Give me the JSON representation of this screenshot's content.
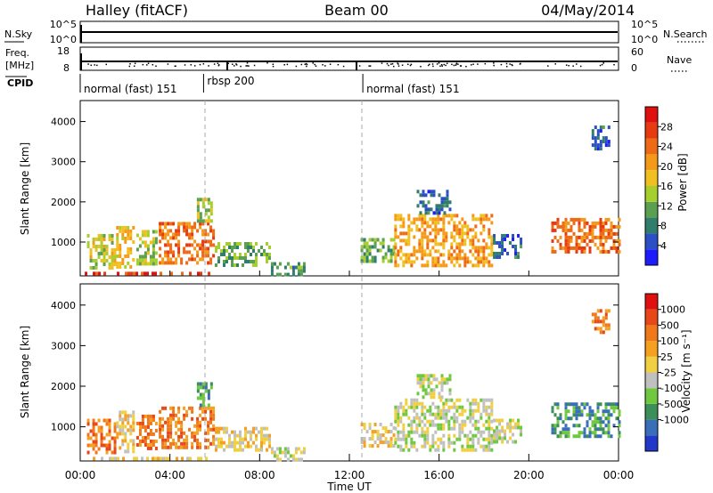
{
  "header": {
    "station": "Halley (fitACF)",
    "beam": "Beam 00",
    "date": "04/May/2014"
  },
  "top_panels": {
    "nsky_label": "N.Sky",
    "nsearch_label": "N.Search",
    "freq_label_1": "Freq.",
    "freq_label_2": "[MHz]",
    "nave_label": "Nave",
    "cpid_label": "CPID",
    "nsky_ticks": [
      "10^5",
      "10^0"
    ],
    "nsky_right_ticks": [
      "10^5",
      "10^0"
    ],
    "freq_ticks": [
      "18",
      "8"
    ],
    "nave_ticks": [
      "60",
      "0"
    ]
  },
  "cpid": [
    {
      "label": "normal (fast) 151",
      "start_h": 0.0
    },
    {
      "label": "rbsp 200",
      "start_h": 5.5
    },
    {
      "label": "normal (fast) 151",
      "start_h": 12.6
    }
  ],
  "time_axis": {
    "label": "Time UT",
    "ticks": [
      "00:00",
      "04:00",
      "08:00",
      "12:00",
      "16:00",
      "20:00",
      "00:00"
    ]
  },
  "range_axis": {
    "label": "Slant Range [km]",
    "ticks": [
      "1000",
      "2000",
      "3000",
      "4000"
    ]
  },
  "power_colorbar": {
    "label": "Power [dB]",
    "ticks": [
      "4",
      "8",
      "12",
      "16",
      "20",
      "24",
      "28"
    ],
    "colors": [
      "#1c1cff",
      "#2b4fc4",
      "#2f7d6b",
      "#5aa050",
      "#a6cf2e",
      "#f0c020",
      "#f59a18",
      "#ee6a14",
      "#e83a10",
      "#e01010"
    ]
  },
  "velocity_colorbar": {
    "label": "Velocity [m s⁻¹]",
    "ticks": [
      "1000",
      "500",
      "100",
      "25",
      "-25",
      "-100",
      "-500",
      "-1000"
    ],
    "colors": [
      "#2238c8",
      "#3a6eb8",
      "#3c8f58",
      "#70c840",
      "#c0c0c0",
      "#f0d040",
      "#f5a020",
      "#f07818",
      "#e84818",
      "#e01010"
    ]
  },
  "chart_data": [
    {
      "type": "heatmap",
      "title": "Power [dB]",
      "xlabel": "Time UT",
      "ylabel": "Slant Range [km]",
      "xlim": [
        0,
        24
      ],
      "ylim": [
        180,
        4500
      ],
      "clim": [
        0,
        32
      ],
      "patches": [
        {
          "t0": 0.2,
          "t1": 5.8,
          "r0": 200,
          "r1": 260,
          "v": 28
        },
        {
          "t0": 0.3,
          "t1": 1.5,
          "r0": 400,
          "r1": 1200,
          "v": 16
        },
        {
          "t0": 1.6,
          "t1": 2.4,
          "r0": 400,
          "r1": 1400,
          "v": 18
        },
        {
          "t0": 2.5,
          "t1": 3.4,
          "r0": 450,
          "r1": 1300,
          "v": 14
        },
        {
          "t0": 3.5,
          "t1": 5.9,
          "r0": 450,
          "r1": 1500,
          "v": 24
        },
        {
          "t0": 5.2,
          "t1": 5.8,
          "r0": 1500,
          "r1": 2100,
          "v": 14
        },
        {
          "t0": 6.0,
          "t1": 8.5,
          "r0": 450,
          "r1": 1000,
          "v": 12
        },
        {
          "t0": 8.5,
          "t1": 10.0,
          "r0": 220,
          "r1": 500,
          "v": 10
        },
        {
          "t0": 12.5,
          "t1": 14.0,
          "r0": 500,
          "r1": 1100,
          "v": 12
        },
        {
          "t0": 14.0,
          "t1": 18.4,
          "r0": 450,
          "r1": 1700,
          "v": 20
        },
        {
          "t0": 15.0,
          "t1": 16.5,
          "r0": 1700,
          "r1": 2300,
          "v": 6
        },
        {
          "t0": 18.4,
          "t1": 19.6,
          "r0": 600,
          "r1": 1200,
          "v": 6
        },
        {
          "t0": 21.0,
          "t1": 24.0,
          "r0": 800,
          "r1": 1600,
          "v": 24
        },
        {
          "t0": 22.8,
          "t1": 23.6,
          "r0": 3300,
          "r1": 3900,
          "v": 6
        }
      ]
    },
    {
      "type": "heatmap",
      "title": "Velocity [m s⁻¹]",
      "xlabel": "Time UT",
      "ylabel": "Slant Range [km]",
      "xlim": [
        0,
        24
      ],
      "ylim": [
        180,
        4500
      ],
      "clim": [
        -1000,
        1000
      ],
      "patches": [
        {
          "t0": 0.2,
          "t1": 5.8,
          "r0": 200,
          "r1": 260,
          "v": 100
        },
        {
          "t0": 0.3,
          "t1": 1.5,
          "r0": 400,
          "r1": 1200,
          "v": 500
        },
        {
          "t0": 1.6,
          "t1": 2.4,
          "r0": 400,
          "r1": 1400,
          "v": 100
        },
        {
          "t0": 2.5,
          "t1": 3.4,
          "r0": 450,
          "r1": 1300,
          "v": 500
        },
        {
          "t0": 3.5,
          "t1": 5.9,
          "r0": 450,
          "r1": 1500,
          "v": 500
        },
        {
          "t0": 5.2,
          "t1": 5.8,
          "r0": 1500,
          "r1": 2100,
          "v": -500
        },
        {
          "t0": 6.0,
          "t1": 8.5,
          "r0": 450,
          "r1": 1000,
          "v": 100
        },
        {
          "t0": 8.5,
          "t1": 10.0,
          "r0": 220,
          "r1": 500,
          "v": -100
        },
        {
          "t0": 12.5,
          "t1": 14.0,
          "r0": 500,
          "r1": 1100,
          "v": 100
        },
        {
          "t0": 14.0,
          "t1": 18.4,
          "r0": 450,
          "r1": 1700,
          "v": -100
        },
        {
          "t0": 15.0,
          "t1": 16.5,
          "r0": 1700,
          "r1": 2300,
          "v": -100
        },
        {
          "t0": 18.4,
          "t1": 19.6,
          "r0": 600,
          "r1": 1200,
          "v": -100
        },
        {
          "t0": 21.0,
          "t1": 24.0,
          "r0": 800,
          "r1": 1600,
          "v": -500
        },
        {
          "t0": 22.8,
          "t1": 23.6,
          "r0": 3300,
          "r1": 3900,
          "v": 500
        }
      ]
    }
  ]
}
